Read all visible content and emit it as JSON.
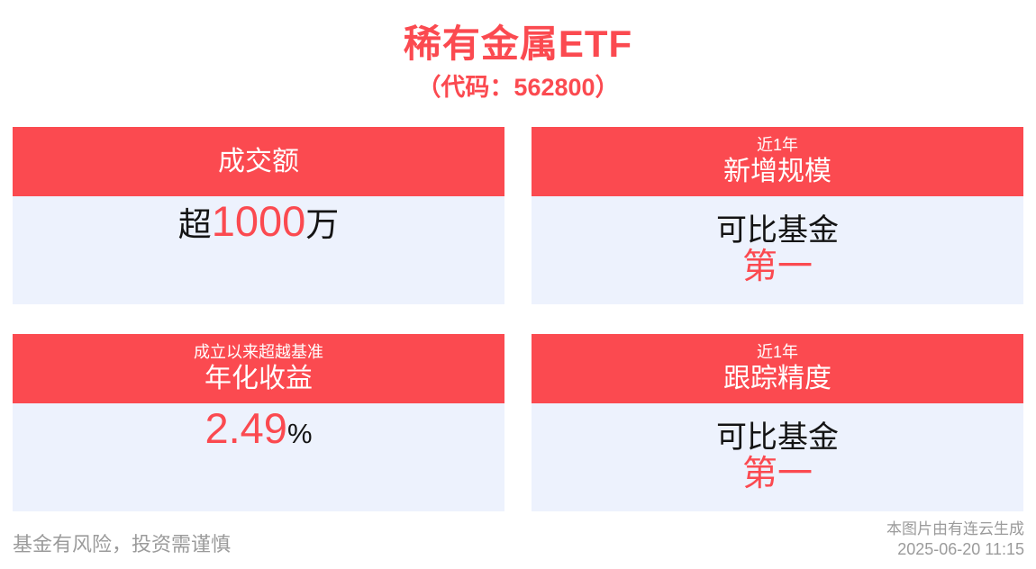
{
  "accent_color": "#fb4a50",
  "panel_bg": "#edf2fd",
  "header": {
    "title": "稀有金属ETF",
    "subtitle": "（代码：562800）"
  },
  "cards": [
    {
      "header_main": "成交额",
      "value_prefix": "超",
      "value_highlight": "1000",
      "value_suffix": "万"
    },
    {
      "header_small": "近1年",
      "header_main": "新增规模",
      "value_line1": "可比基金",
      "value_line2": "第一"
    },
    {
      "header_small": "成立以来超越基准",
      "header_main": "年化收益",
      "value_highlight": "2.49",
      "value_suffix": "%"
    },
    {
      "header_small": "近1年",
      "header_main": "跟踪精度",
      "value_line1": "可比基金",
      "value_line2": "第一"
    }
  ],
  "footer": {
    "disclaimer": "基金有风险，投资需谨慎",
    "credit": "本图片由有连云生成",
    "timestamp": "2025-06-20 11:15"
  }
}
